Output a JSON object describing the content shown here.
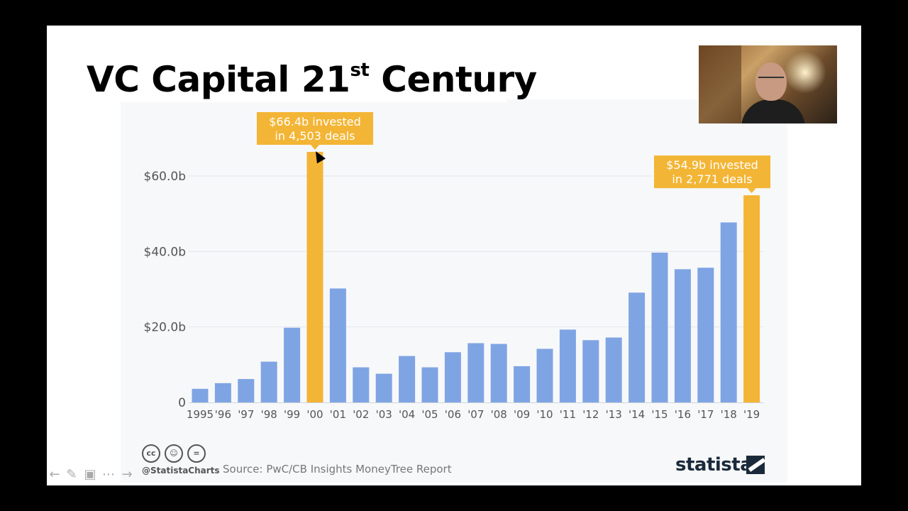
{
  "slide": {
    "title_main": "VC Capital 21",
    "title_sup": "st",
    "title_end": " Century"
  },
  "footer": {
    "handle": "@StatistaCharts",
    "source": "Source: PwC/CB Insights MoneyTree Report",
    "brand": "statista",
    "license_icons": [
      "cc-icon",
      "by-icon",
      "nd-icon"
    ]
  },
  "nav": {
    "buttons": [
      "back-icon",
      "pen-icon",
      "slides-icon",
      "more-icon",
      "forward-icon"
    ]
  },
  "colors": {
    "bar": "#7fa4e3",
    "highlight": "#f3b535",
    "axis_text": "#555555",
    "grid": "#e3e6ec"
  },
  "chart_data": {
    "type": "bar",
    "categories": [
      "1995",
      "'96",
      "'97",
      "'98",
      "'99",
      "'00",
      "'01",
      "'02",
      "'03",
      "'04",
      "'05",
      "'06",
      "'07",
      "'08",
      "'09",
      "'10",
      "'11",
      "'12",
      "'13",
      "'14",
      "'15",
      "'16",
      "'17",
      "'18",
      "'19"
    ],
    "values": [
      3.6,
      5.1,
      6.2,
      10.8,
      19.8,
      66.4,
      30.2,
      9.3,
      7.6,
      12.3,
      9.3,
      13.3,
      15.7,
      15.5,
      9.6,
      14.2,
      19.3,
      16.5,
      17.2,
      29.1,
      39.7,
      35.3,
      35.7,
      47.7,
      54.9
    ],
    "highlighted": [
      "'00",
      "'19"
    ],
    "y_ticks": [
      {
        "value": 0,
        "label": "0"
      },
      {
        "value": 20,
        "label": "$20.0b"
      },
      {
        "value": 40,
        "label": "$40.0b"
      },
      {
        "value": 60,
        "label": "$60.0b"
      }
    ],
    "ylim": [
      0,
      66.4
    ],
    "grid": true,
    "annotations": [
      {
        "category": "'00",
        "lines": [
          "$66.4b invested",
          "in 4,503 deals"
        ]
      },
      {
        "category": "'19",
        "lines": [
          "$54.9b invested",
          "in 2,771 deals"
        ]
      }
    ]
  }
}
